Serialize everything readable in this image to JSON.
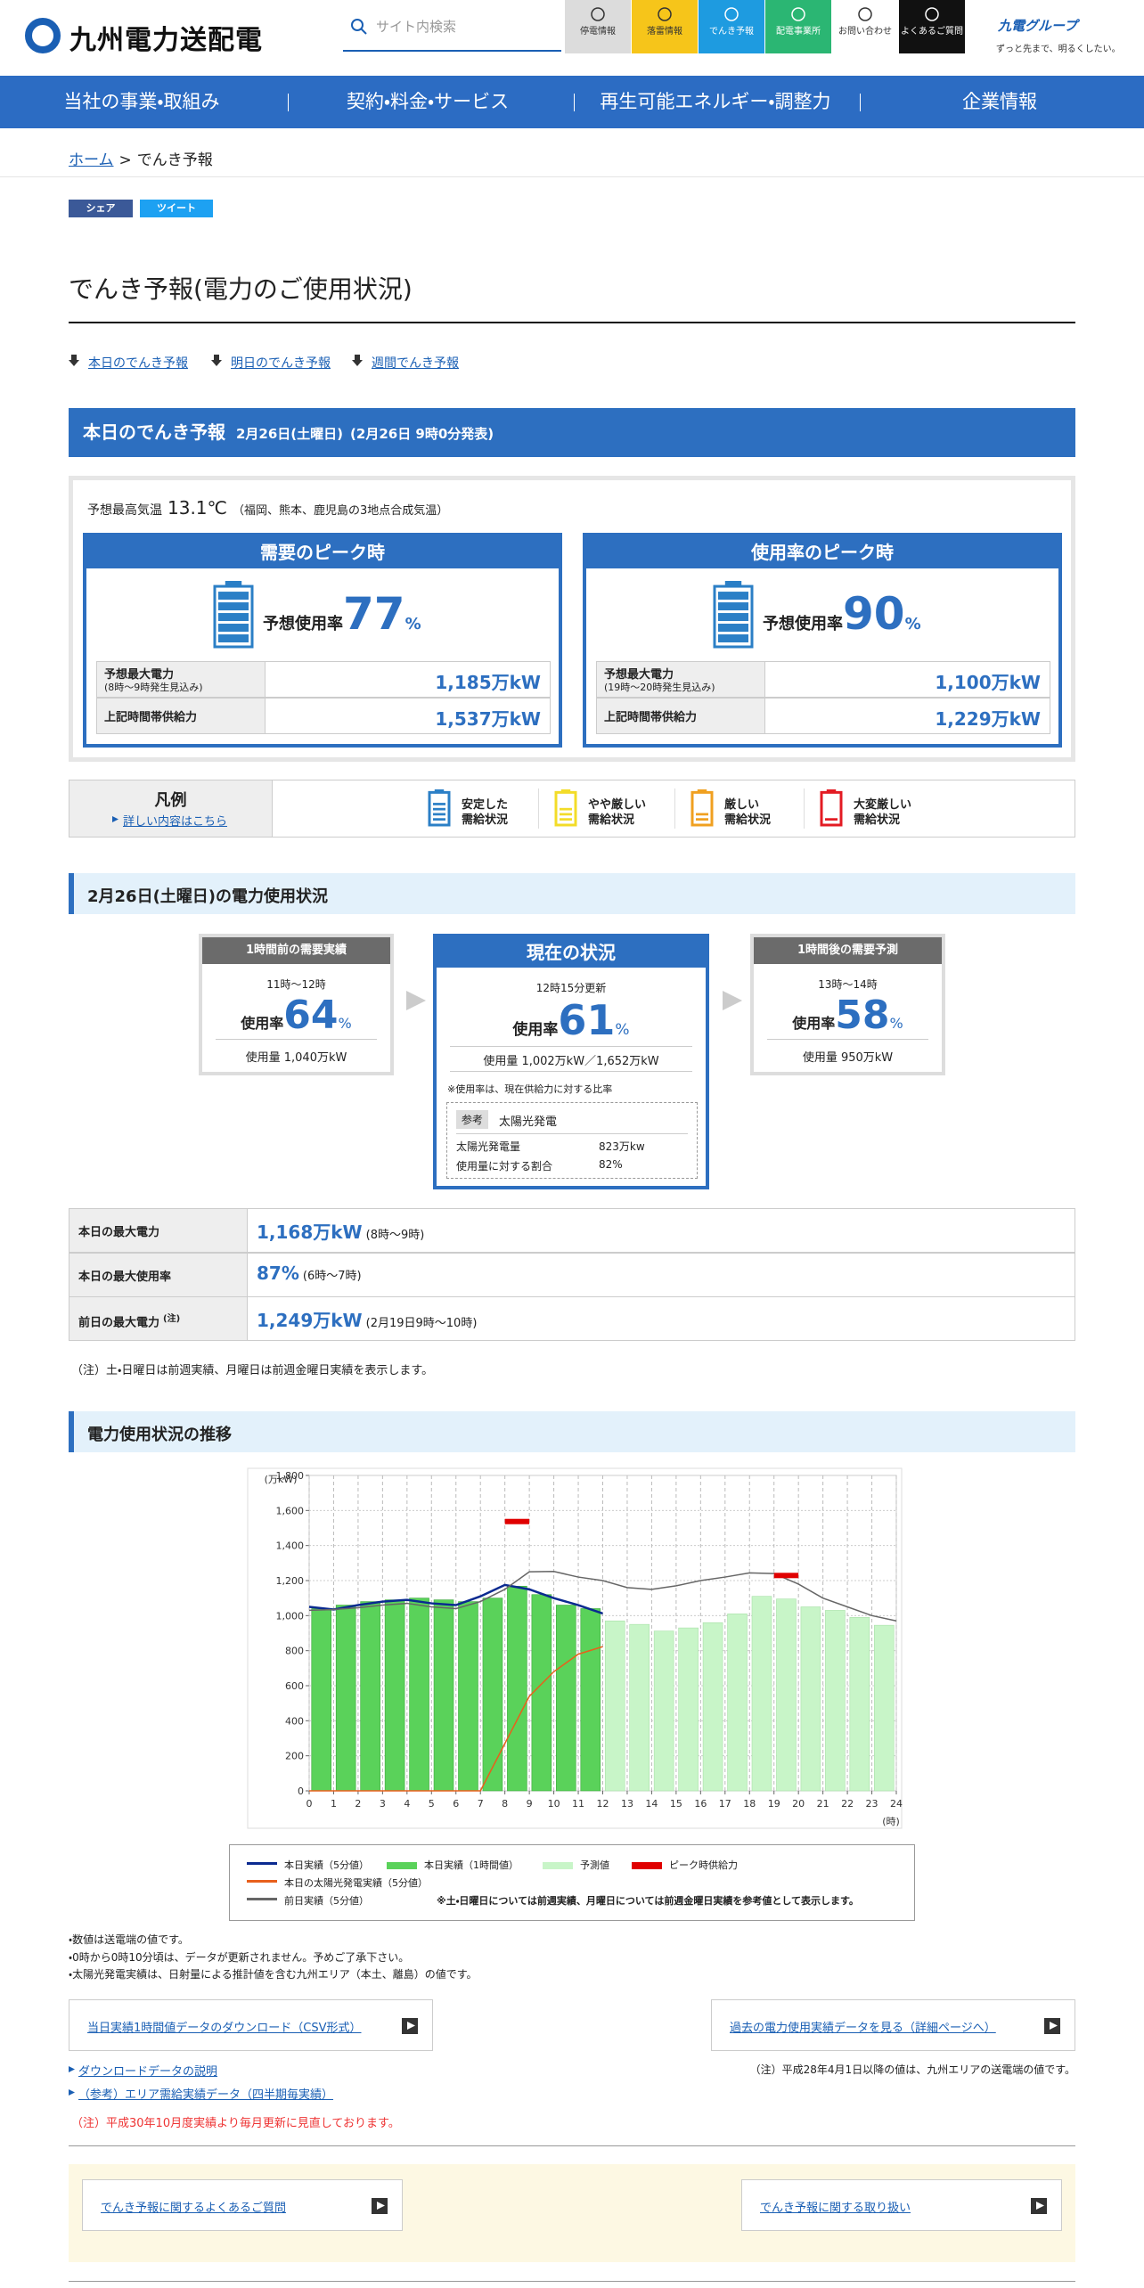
{
  "header": {
    "logo": "九州電力送配電",
    "search_placeholder": "サイト内検索",
    "menu": [
      "停電情報",
      "落雷情報",
      "でんき予報",
      "配電事業所",
      "お問い合わせ",
      "よくあるご質問"
    ],
    "group_logo": "九電グループ",
    "tagline": "ずっと先まで、明るくしたい。"
  },
  "nav": [
    "当社の事業・取組み",
    "契約・料金・サービス",
    "再生可能エネルギー・調整力",
    "企業情報"
  ],
  "breadcrumb": {
    "home": "ホーム",
    "separator": ">",
    "current": "でんき予報"
  },
  "share": [
    "シェア",
    "ツイート"
  ],
  "title": "でんき予報(電力のご使用状況)",
  "anchors": [
    "本日のでんき予報",
    "明日のでんき予報",
    "週間でんき予報"
  ],
  "today": {
    "heading": "本日のでんき予報",
    "date": "2月26日(土曜日)",
    "issued": "(2月26日 9時0分発表)",
    "temp_label": "予想最高気温",
    "temp": "13.1℃",
    "temp_note": "（福岡、熊本、鹿児島の3地点合成気温）",
    "peaks": [
      {
        "title": "需要のピーク時",
        "rate_label": "予想使用率",
        "rate": "77",
        "unit": "%",
        "rows": [
          {
            "label": "予想最大電力",
            "sub": "(8時〜9時発生見込み)",
            "value": "1,185万kW"
          },
          {
            "label": "上記時間帯供給力",
            "value": "1,537万kW"
          }
        ]
      },
      {
        "title": "使用率のピーク時",
        "rate_label": "予想使用率",
        "rate": "90",
        "unit": "%",
        "rows": [
          {
            "label": "予想最大電力",
            "sub": "(19時〜20時発生見込み)",
            "value": "1,100万kW"
          },
          {
            "label": "上記時間帯供給力",
            "value": "1,229万kW"
          }
        ]
      }
    ]
  },
  "legend": {
    "title": "凡例",
    "link": "詳しい内容はこちら",
    "items": [
      [
        "安定した",
        "需給状況"
      ],
      [
        "やや厳しい",
        "需給状況"
      ],
      [
        "厳しい",
        "需給状況"
      ],
      [
        "大変厳しい",
        "需給状況"
      ]
    ]
  },
  "status": {
    "heading": "2月26日(土曜日)の電力使用状況",
    "prev": {
      "title": "1時間前の需要実績",
      "time": "11時～12時",
      "rate_label": "使用率",
      "rate": "64",
      "unit": "%",
      "usage": "使用量 1,040万kW"
    },
    "now": {
      "title": "現在の状況",
      "time": "12時15分更新",
      "rate_label": "使用率",
      "rate": "61",
      "unit": "%",
      "usage": "使用量 1,002万kW／1,652万kW",
      "note": "※使用率は、現在供給力に対する比率",
      "ref_tag": "参考",
      "ref_title": "太陽光発電",
      "ref_rows": [
        [
          "太陽光発電量",
          "823万kw"
        ],
        [
          "使用量に対する割合",
          "82%"
        ]
      ]
    },
    "next": {
      "title": "1時間後の需要予測",
      "time": "13時～14時",
      "rate_label": "使用率",
      "rate": "58",
      "unit": "%",
      "usage": "使用量 950万kW"
    }
  },
  "summary": {
    "rows": [
      {
        "label": "本日の最大電力",
        "value": "1,168万kW",
        "detail": "(8時〜9時)"
      },
      {
        "label": "本日の最大使用率",
        "value": "87%",
        "detail": "(6時〜7時)"
      },
      {
        "label": "前日の最大電力",
        "sup": "(注)",
        "value": "1,249万kW",
        "detail": "(2月19日9時〜10時)"
      }
    ],
    "note": "（注）土・日曜日は前週実績、月曜日は前週金曜日実績を表示します。"
  },
  "chart_heading": "電力使用状況の推移",
  "chart_data": {
    "type": "combo",
    "y_label": "(万kW)",
    "x_label": "(時)",
    "xlim": [
      0,
      24
    ],
    "ylim": [
      0,
      1800
    ],
    "xticks": [
      0,
      1,
      2,
      3,
      4,
      5,
      6,
      7,
      8,
      9,
      10,
      11,
      12,
      13,
      14,
      15,
      16,
      17,
      18,
      19,
      20,
      21,
      22,
      23,
      24
    ],
    "yticks": [
      0,
      200,
      400,
      600,
      800,
      {
        "value": 1000,
        "label": "1,000"
      },
      {
        "value": 1200,
        "label": "1,200"
      },
      {
        "value": 1400,
        "label": "1,400"
      },
      {
        "value": 1600,
        "label": "1,600"
      },
      {
        "value": 1800,
        "label": "1,800"
      }
    ],
    "grid": true,
    "series": [
      {
        "name": "本日実績（5分値）",
        "type": "line",
        "color": "#0a2a90",
        "x": [
          0,
          1,
          2,
          3,
          4,
          5,
          6,
          7,
          8,
          9,
          10,
          11,
          12
        ],
        "values": [
          1050,
          1035,
          1060,
          1080,
          1090,
          1070,
          1060,
          1110,
          1175,
          1150,
          1100,
          1060,
          1012
        ]
      },
      {
        "name": "本日実績（1時間値）",
        "type": "bar",
        "color": "#5ad25a",
        "x": [
          0,
          1,
          2,
          3,
          4,
          5,
          6,
          7,
          8,
          9,
          10,
          11
        ],
        "values": [
          1040,
          1060,
          1080,
          1090,
          1100,
          1090,
          1080,
          1100,
          1168,
          1120,
          1060,
          1040
        ]
      },
      {
        "name": "予測値",
        "type": "bar",
        "color": "#c8f5c8",
        "x": [
          12,
          13,
          14,
          15,
          16,
          17,
          18,
          19,
          20,
          21,
          22,
          23
        ],
        "values": [
          970,
          950,
          912,
          930,
          960,
          1010,
          1110,
          1095,
          1050,
          1030,
          990,
          945
        ]
      },
      {
        "name": "ピーク時供給力",
        "type": "marker",
        "color": "#e00000",
        "x": [
          8,
          19
        ],
        "values": [
          1537,
          1229
        ]
      },
      {
        "name": "本日の太陽光発電実績（5分値）",
        "type": "line",
        "color": "#e8601c",
        "x": [
          0,
          1,
          2,
          3,
          4,
          5,
          6,
          7,
          8,
          9,
          10,
          11,
          12
        ],
        "values": [
          0,
          0,
          0,
          0,
          0,
          0,
          0,
          0,
          270,
          540,
          680,
          780,
          823
        ]
      },
      {
        "name": "前日実績（5分値）",
        "type": "line",
        "color": "#666666",
        "x": [
          0,
          1,
          2,
          3,
          4,
          5,
          6,
          7,
          8,
          9,
          10,
          11,
          12,
          13,
          14,
          15,
          16,
          17,
          18,
          19,
          20,
          21,
          22,
          23,
          24
        ],
        "values": [
          1030,
          1035,
          1045,
          1060,
          1070,
          1050,
          1040,
          1080,
          1150,
          1250,
          1252,
          1220,
          1200,
          1160,
          1150,
          1170,
          1200,
          1220,
          1244,
          1240,
          1180,
          1100,
          1050,
          1000,
          970
        ]
      }
    ],
    "legend_note": "※土・日曜日については前週実績、月曜日については前週金曜日実績を参考値として表示します。"
  },
  "chart_notes": [
    "・数値は送電端の値です。",
    "・0時から0時10分頃は、データが更新されません。予めご了承下さい。",
    "・太陽光発電実績は、日射量による推計値を含む九州エリア（本土、離島）の値です。"
  ],
  "downloads": {
    "csv": "当日実績1時間値データのダウンロード（CSV形式）",
    "past": "過去の電力使用実績データを見る（詳細ページへ）",
    "past_note": "（注）平成28年4月1日以降の値は、九州エリアの送電端の値です。",
    "links": [
      "ダウンロードデータの説明",
      "（参考）エリア需給実績データ（四半期毎実績）"
    ],
    "red_note": "（注）平成30年10月度実績より毎月更新に見直しております。"
  },
  "faq": [
    "でんき予報に関するよくあるご質問",
    "でんき予報に関する取り扱い"
  ]
}
